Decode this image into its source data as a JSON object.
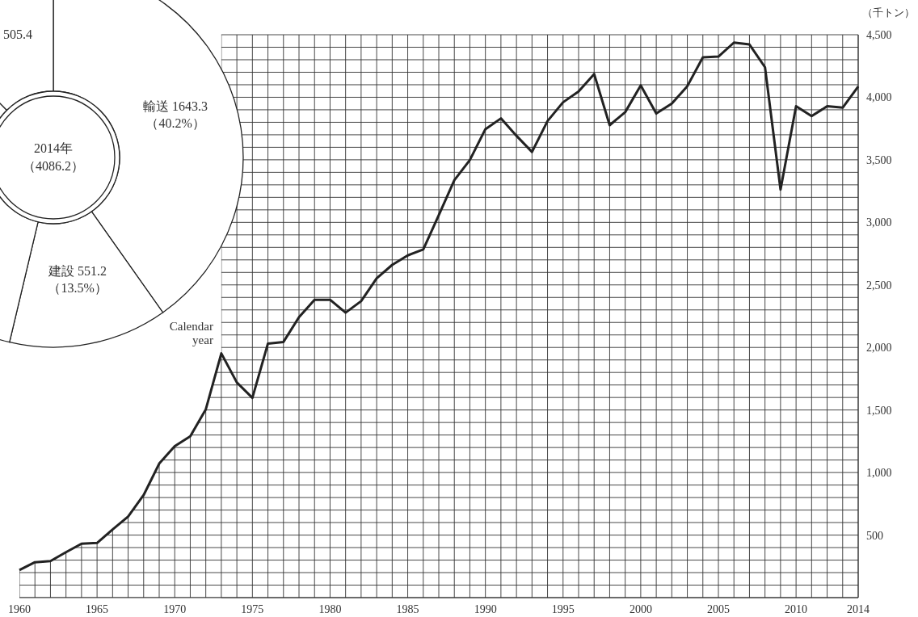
{
  "chart_data": [
    {
      "type": "line",
      "ylabel": "（千トン）",
      "xlim": [
        1960,
        2014
      ],
      "ylim": [
        0,
        4500
      ],
      "xticks": [
        1960,
        1965,
        1970,
        1975,
        1980,
        1985,
        1990,
        1995,
        2000,
        2005,
        2010,
        2014
      ],
      "yticks": [
        {
          "value": 500,
          "label": "500"
        },
        {
          "value": 1000,
          "label": "1,000"
        },
        {
          "value": 1500,
          "label": "1,500"
        },
        {
          "value": 2000,
          "label": "2,000"
        },
        {
          "value": 2500,
          "label": "2,500"
        },
        {
          "value": 3000,
          "label": "3,000"
        },
        {
          "value": 3500,
          "label": "3,500"
        },
        {
          "value": 4000,
          "label": "4,000"
        },
        {
          "value": 4500,
          "label": "4,500"
        }
      ],
      "grid": true,
      "marker": "none",
      "line_style": "solid",
      "annotations": [
        {
          "text": "Calendar year",
          "x": 1973,
          "y": 1952
        }
      ],
      "x": [
        1960,
        1961,
        1962,
        1963,
        1964,
        1965,
        1966,
        1967,
        1968,
        1969,
        1970,
        1971,
        1972,
        1973,
        1974,
        1975,
        1976,
        1977,
        1978,
        1979,
        1980,
        1981,
        1982,
        1983,
        1984,
        1985,
        1986,
        1987,
        1988,
        1989,
        1990,
        1991,
        1992,
        1993,
        1994,
        1995,
        1996,
        1997,
        1998,
        1999,
        2000,
        2001,
        2002,
        2003,
        2004,
        2005,
        2006,
        2007,
        2008,
        2009,
        2010,
        2011,
        2012,
        2013,
        2014
      ],
      "series": [
        {
          "color": "#222222",
          "values": [
            220,
            283,
            292,
            363,
            431,
            437,
            545,
            648,
            820,
            1071,
            1211,
            1290,
            1505,
            1952,
            1720,
            1597,
            2031,
            2044,
            2242,
            2381,
            2381,
            2278,
            2370,
            2553,
            2660,
            2736,
            2783,
            3058,
            3337,
            3498,
            3745,
            3831,
            3692,
            3563,
            3810,
            3960,
            4046,
            4186,
            3777,
            3881,
            4095,
            3870,
            3949,
            4089,
            4319,
            4325,
            4437,
            4422,
            4240,
            3262,
            3928,
            3849,
            3928,
            3917,
            4086
          ]
        }
      ]
    },
    {
      "type": "donut",
      "title": "2014年",
      "subtitle": "（4086.2）",
      "categories": [
        "輸送",
        "建設",
        null,
        null
      ],
      "values": [
        1643.3,
        551.2,
        1386.3,
        505.4
      ],
      "colors": [
        "#ffffff",
        "#ffffff",
        "#ffffff",
        "#ffffff"
      ],
      "value_labels": [
        "1643.3\n（40.2%）",
        "551.2\n（13.5%）",
        null,
        "505.4"
      ]
    }
  ]
}
